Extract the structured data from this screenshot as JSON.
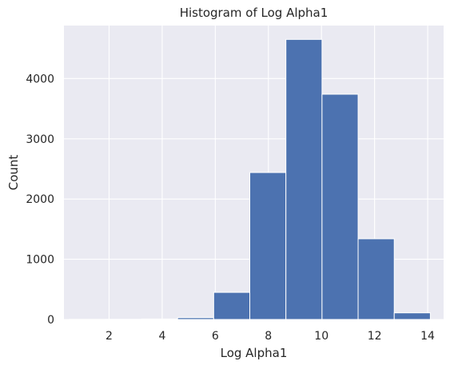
{
  "chart_data": {
    "type": "bar",
    "title": "Histogram of Log Alpha1",
    "xlabel": "Log Alpha1",
    "ylabel": "Count",
    "xlim": [
      0.3,
      14.6
    ],
    "ylim": [
      0,
      4880
    ],
    "xticks": [
      2,
      4,
      6,
      8,
      10,
      12,
      14
    ],
    "yticks": [
      0,
      1000,
      2000,
      3000,
      4000
    ],
    "bin_edges": [
      0.5,
      1.86,
      3.22,
      4.58,
      5.94,
      7.3,
      8.66,
      10.02,
      11.38,
      12.74,
      14.1
    ],
    "values": [
      2,
      3,
      8,
      30,
      450,
      2440,
      4650,
      3740,
      1340,
      110
    ],
    "grid": true,
    "bar_color": "#4c72b0",
    "background_color": "#eaeaf2",
    "grid_color": "#ffffff"
  }
}
